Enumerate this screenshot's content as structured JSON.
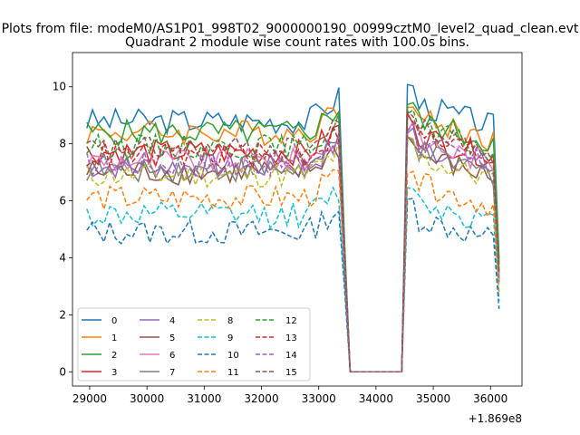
{
  "chart_data": {
    "type": "line",
    "suptitle": "Plots from file: modeM0/AS1P01_998T02_9000000190_00999cztM0_level2_quad_clean.evt",
    "title": "Quadrant 2 module wise count rates with 100.0s bins.",
    "xlabel": "",
    "ylabel": "",
    "x_offset_label": "+1.869e8",
    "xlim": [
      28700,
      36550
    ],
    "ylim": [
      -0.5,
      11.2
    ],
    "x_ticks": [
      29000,
      30000,
      31000,
      32000,
      33000,
      34000,
      35000,
      36000
    ],
    "x_tick_labels": [
      "29000",
      "30000",
      "31000",
      "32000",
      "33000",
      "34000",
      "35000",
      "36000"
    ],
    "y_ticks": [
      0,
      2,
      4,
      6,
      8,
      10
    ],
    "y_tick_labels": [
      "0",
      "2",
      "4",
      "6",
      "8",
      "10"
    ],
    "x_start": 28950,
    "x_step": 100,
    "legend": {
      "placement": "lower-left",
      "columns": 4
    },
    "series": [
      {
        "name": "0",
        "color": "#1f77b4",
        "dash": "solid",
        "level1": 8.8,
        "level2": 9.4
      },
      {
        "name": "1",
        "color": "#ff7f0e",
        "dash": "solid",
        "level1": 8.4,
        "level2": 8.9
      },
      {
        "name": "2",
        "color": "#2ca02c",
        "dash": "solid",
        "level1": 8.4,
        "level2": 8.8
      },
      {
        "name": "3",
        "color": "#d62728",
        "dash": "solid",
        "level1": 7.7,
        "level2": 8.3
      },
      {
        "name": "4",
        "color": "#9467bd",
        "dash": "solid",
        "level1": 7.2,
        "level2": 7.9
      },
      {
        "name": "5",
        "color": "#8c564b",
        "dash": "solid",
        "level1": 7.0,
        "level2": 7.6
      },
      {
        "name": "6",
        "color": "#e377c2",
        "dash": "solid",
        "level1": 7.4,
        "level2": 8.1
      },
      {
        "name": "7",
        "color": "#7f7f7f",
        "dash": "solid",
        "level1": 7.1,
        "level2": 7.7
      },
      {
        "name": "8",
        "color": "#bcbd22",
        "dash": "dashed",
        "level1": 6.9,
        "level2": 7.5
      },
      {
        "name": "9",
        "color": "#17becf",
        "dash": "dashed",
        "level1": 5.5,
        "level2": 6.0
      },
      {
        "name": "10",
        "color": "#1f77b4",
        "dash": "dashed",
        "level1": 4.9,
        "level2": 5.4
      },
      {
        "name": "11",
        "color": "#ff7f0e",
        "dash": "dashed",
        "level1": 6.1,
        "level2": 6.6
      },
      {
        "name": "12",
        "color": "#2ca02c",
        "dash": "dashed",
        "level1": 7.9,
        "level2": 8.5
      },
      {
        "name": "13",
        "color": "#d62728",
        "dash": "dashed",
        "level1": 7.6,
        "level2": 8.3
      },
      {
        "name": "14",
        "color": "#9467bd",
        "dash": "dashed",
        "level1": 7.3,
        "level2": 8.0
      },
      {
        "name": "15",
        "color": "#8c564b",
        "dash": "dashed",
        "level1": 7.8,
        "level2": 8.5
      }
    ]
  }
}
